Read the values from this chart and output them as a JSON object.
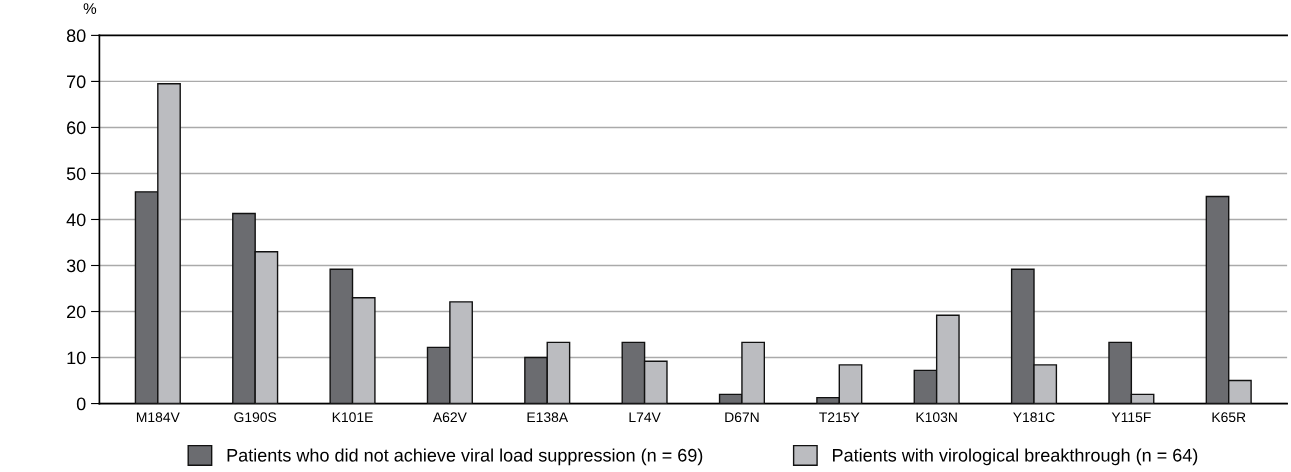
{
  "chart_data": {
    "type": "bar",
    "ylabel": "%",
    "categories": [
      "M184V",
      "G190S",
      "K101E",
      "A62V",
      "E138A",
      "L74V",
      "D67N",
      "T215Y",
      "K103N",
      "Y181C",
      "Y115F",
      "K65R"
    ],
    "series": [
      {
        "name": "Patients who did not achieve viral load suppression (n = 69)",
        "color": "#6b6c70",
        "values": [
          46,
          41.3,
          29.2,
          12.2,
          10,
          13.3,
          2,
          1.3,
          7.2,
          29.2,
          13.3,
          45
        ]
      },
      {
        "name": "Patients with virological breakthrough (n = 64)",
        "color": "#bbbcc0",
        "values": [
          69.5,
          33,
          23,
          22.1,
          13.3,
          9.2,
          13.3,
          8.4,
          19.2,
          8.4,
          2,
          5
        ]
      }
    ],
    "ylim": [
      0,
      80
    ],
    "yticks": [
      0,
      10,
      20,
      30,
      40,
      50,
      60,
      70,
      80
    ],
    "grid": "y",
    "legend": "bottom"
  }
}
